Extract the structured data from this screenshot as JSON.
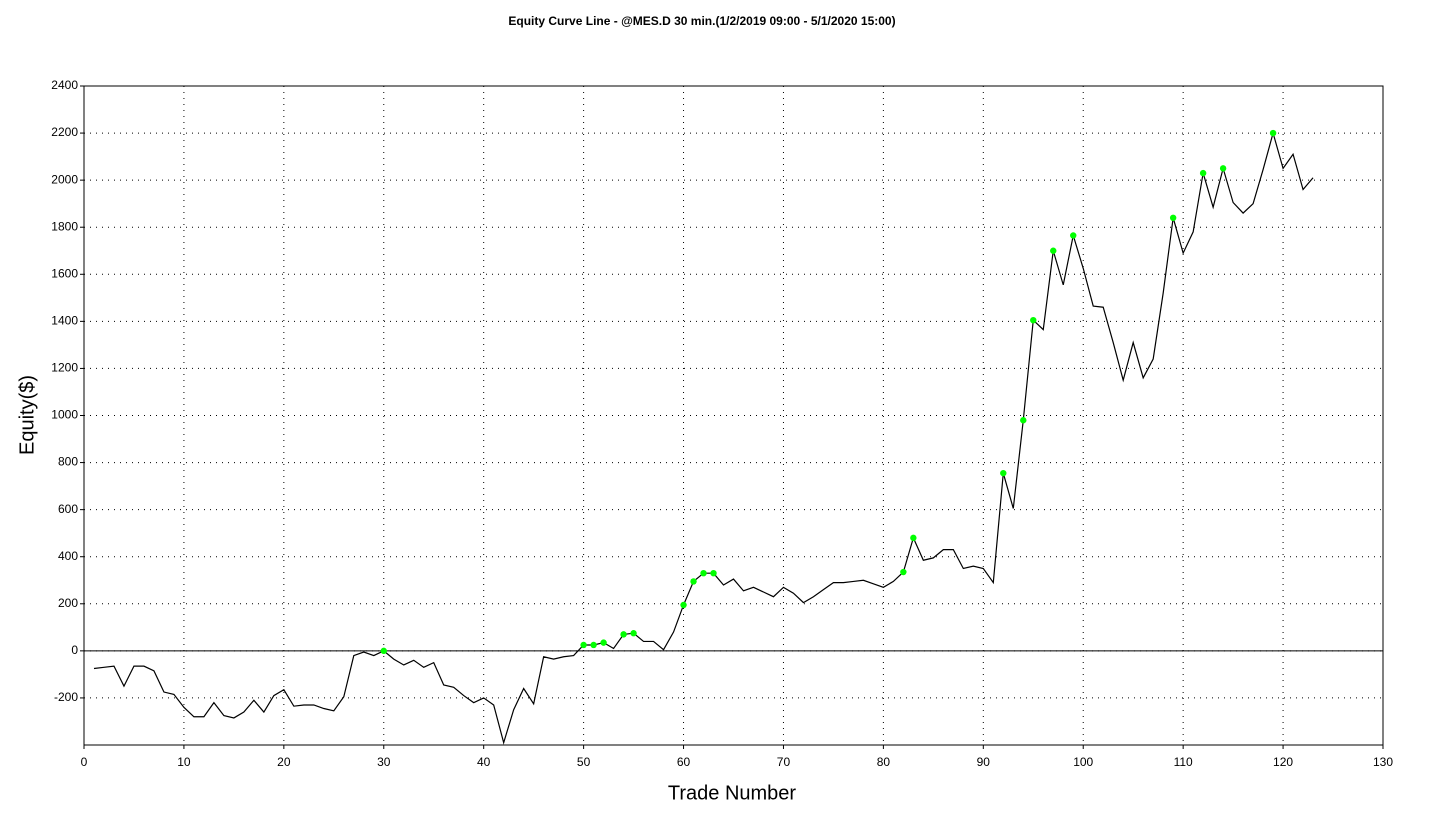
{
  "chart_data": {
    "type": "line",
    "title": "Equity Curve Line - @MES.D 30 min.(1/2/2019 09:00 - 5/1/2020 15:00)",
    "x_label": "Trade Number",
    "y_label": "Equity($)",
    "xlim": [
      0,
      130
    ],
    "xticks": [
      0,
      10,
      20,
      30,
      40,
      50,
      60,
      70,
      80,
      90,
      100,
      110,
      120,
      130
    ],
    "ylim": [
      -400,
      2400
    ],
    "yticks": [
      -200,
      0,
      200,
      400,
      600,
      800,
      1000,
      1200,
      1400,
      1600,
      1800,
      2000,
      2200,
      2400
    ],
    "grid": true,
    "series": [
      {
        "color": "#000000",
        "x": [
          1,
          2,
          3,
          4,
          5,
          6,
          7,
          8,
          9,
          10,
          11,
          12,
          13,
          14,
          15,
          16,
          17,
          18,
          19,
          20,
          21,
          22,
          23,
          24,
          25,
          26,
          27,
          28,
          29,
          30,
          31,
          32,
          33,
          34,
          35,
          36,
          37,
          38,
          39,
          40,
          41,
          42,
          43,
          44,
          45,
          46,
          47,
          48,
          49,
          50,
          51,
          52,
          53,
          54,
          55,
          56,
          57,
          58,
          59,
          60,
          61,
          62,
          63,
          64,
          65,
          66,
          67,
          68,
          69,
          70,
          71,
          72,
          73,
          74,
          75,
          76,
          77,
          78,
          79,
          80,
          81,
          82,
          83,
          84,
          85,
          86,
          87,
          88,
          89,
          90,
          91,
          92,
          93,
          94,
          95,
          96,
          97,
          98,
          99,
          100,
          101,
          102,
          103,
          104,
          105,
          106,
          107,
          108,
          109,
          110,
          111,
          112,
          113,
          114,
          115,
          116,
          117,
          118,
          119,
          120,
          121,
          122,
          123
        ],
        "values": [
          -75,
          -70,
          -65,
          -150,
          -65,
          -65,
          -85,
          -175,
          -185,
          -240,
          -280,
          -280,
          -220,
          -275,
          -285,
          -260,
          -210,
          -260,
          -190,
          -165,
          -235,
          -230,
          -230,
          -245,
          -255,
          -195,
          -20,
          -5,
          -20,
          0,
          -35,
          -60,
          -40,
          -70,
          -50,
          -145,
          -155,
          -190,
          -220,
          -200,
          -230,
          -390,
          -250,
          -160,
          -225,
          -25,
          -35,
          -25,
          -20,
          25,
          25,
          35,
          10,
          70,
          75,
          40,
          40,
          5,
          80,
          195,
          295,
          330,
          330,
          280,
          305,
          255,
          270,
          250,
          230,
          270,
          245,
          205,
          230,
          260,
          290,
          290,
          295,
          300,
          285,
          270,
          295,
          335,
          480,
          385,
          395,
          430,
          430,
          350,
          360,
          350,
          290,
          755,
          605,
          980,
          1405,
          1365,
          1700,
          1555,
          1765,
          1625,
          1465,
          1460,
          1310,
          1150,
          1310,
          1160,
          1240,
          1520,
          1840,
          1690,
          1780,
          2030,
          1885,
          2050,
          1905,
          1860,
          1900,
          2045,
          2200,
          2050,
          2110,
          1960,
          2010
        ]
      },
      {
        "color": "#00ff00",
        "x": [
          30,
          50,
          51,
          52,
          54,
          55,
          60,
          61,
          62,
          63,
          82,
          83,
          92,
          94,
          95,
          97,
          99,
          109,
          112,
          114,
          119
        ],
        "values": [
          0,
          25,
          25,
          35,
          70,
          75,
          195,
          295,
          330,
          330,
          335,
          480,
          755,
          980,
          1405,
          1700,
          1765,
          1840,
          2030,
          2050,
          2200
        ]
      }
    ]
  }
}
